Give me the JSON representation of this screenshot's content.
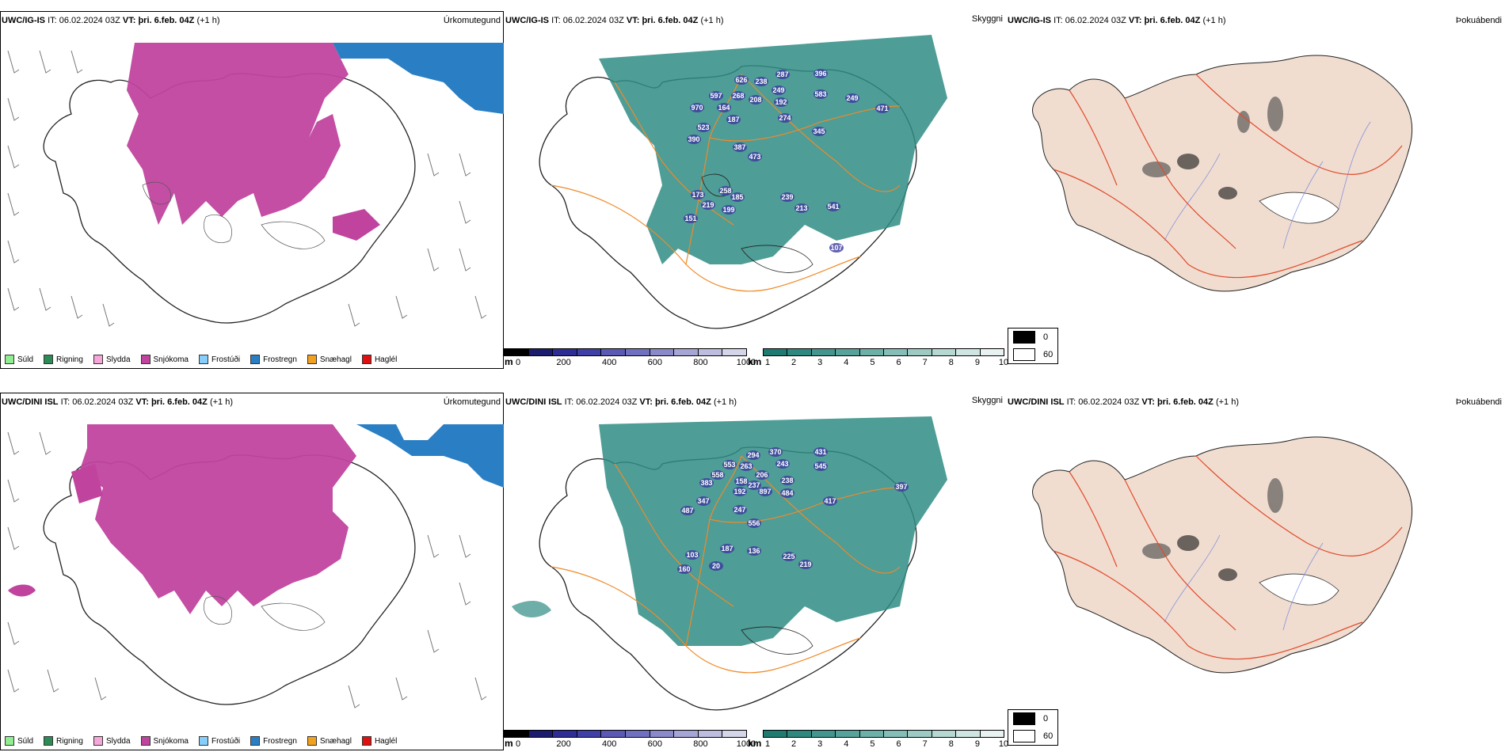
{
  "rows": [
    {
      "model": "UWC/IG-IS",
      "issue_label": "IT:",
      "issue": "06.02.2024 03Z",
      "valid_label": "VT:",
      "valid": "þri. 6.feb. 04Z",
      "offset": "(+1 h)"
    },
    {
      "model": "UWC/DINI ISL",
      "issue_label": "IT:",
      "issue": "06.02.2024 03Z",
      "valid_label": "VT:",
      "valid": "þri. 6.feb. 04Z",
      "offset": "(+1 h)"
    }
  ],
  "panels": {
    "precip_type": "Úrkomutegund",
    "cloud": "Skyggni",
    "fog": "Þokuábendi"
  },
  "precip_legend": [
    {
      "label": "Súld",
      "color": "#90ee90"
    },
    {
      "label": "Rigning",
      "color": "#2e8b57"
    },
    {
      "label": "Slydda",
      "color": "#f4a7d8"
    },
    {
      "label": "Snjókoma",
      "color": "#c0449e"
    },
    {
      "label": "Frostúði",
      "color": "#87cefa"
    },
    {
      "label": "Frostregn",
      "color": "#2a7fc4"
    },
    {
      "label": "Snæhagl",
      "color": "#f2a020"
    },
    {
      "label": "Haglél",
      "color": "#e01010"
    }
  ],
  "height_scale": {
    "unit": "m",
    "ticks": [
      "0",
      "200",
      "400",
      "600",
      "800",
      "1000"
    ],
    "colors": [
      "#000000",
      "#1c1c6e",
      "#2d2d95",
      "#3f3fa8",
      "#5a5ab5",
      "#7070c0",
      "#8a8acb",
      "#a5a5d6",
      "#bdbde0",
      "#d5d5ea"
    ]
  },
  "vis_scale": {
    "unit": "km",
    "ticks": [
      "1",
      "2",
      "3",
      "4",
      "5",
      "6",
      "7",
      "8",
      "9",
      "10"
    ],
    "colors": [
      "#1f7a72",
      "#2f8880",
      "#43958d",
      "#57a29a",
      "#6cb0a8",
      "#84beb6",
      "#9dcbc4",
      "#b6d8d2",
      "#cfe5e1",
      "#e8f2f0"
    ]
  },
  "fog_legend": [
    {
      "label": "0",
      "color": "#000000"
    },
    {
      "label": "60",
      "color": "#ffffff"
    }
  ],
  "cloud_labels": [
    [
      "626",
      "238",
      "287",
      "396",
      "597",
      "268",
      "249",
      "583",
      "970",
      "164",
      "208",
      "192",
      "249",
      "187",
      "274",
      "471",
      "523",
      "345",
      "390",
      "387",
      "473",
      "258",
      "185",
      "173",
      "219",
      "199",
      "239",
      "213",
      "541",
      "151",
      "107"
    ],
    [
      "294",
      "370",
      "431",
      "553",
      "263",
      "243",
      "545",
      "558",
      "206",
      "237",
      "383",
      "158",
      "238",
      "192",
      "897",
      "484",
      "397",
      "347",
      "417",
      "487",
      "247",
      "556",
      "187",
      "136",
      "103",
      "225",
      "219",
      "160",
      "20"
    ]
  ],
  "colors": {
    "snow": "#c0449e",
    "freezing_rain": "#2a7fc4",
    "vis_teal": "#2f8c84",
    "roads": "#f08a2a",
    "fog_land": "#f0ddd0",
    "fog_roads": "#e24a2a"
  }
}
